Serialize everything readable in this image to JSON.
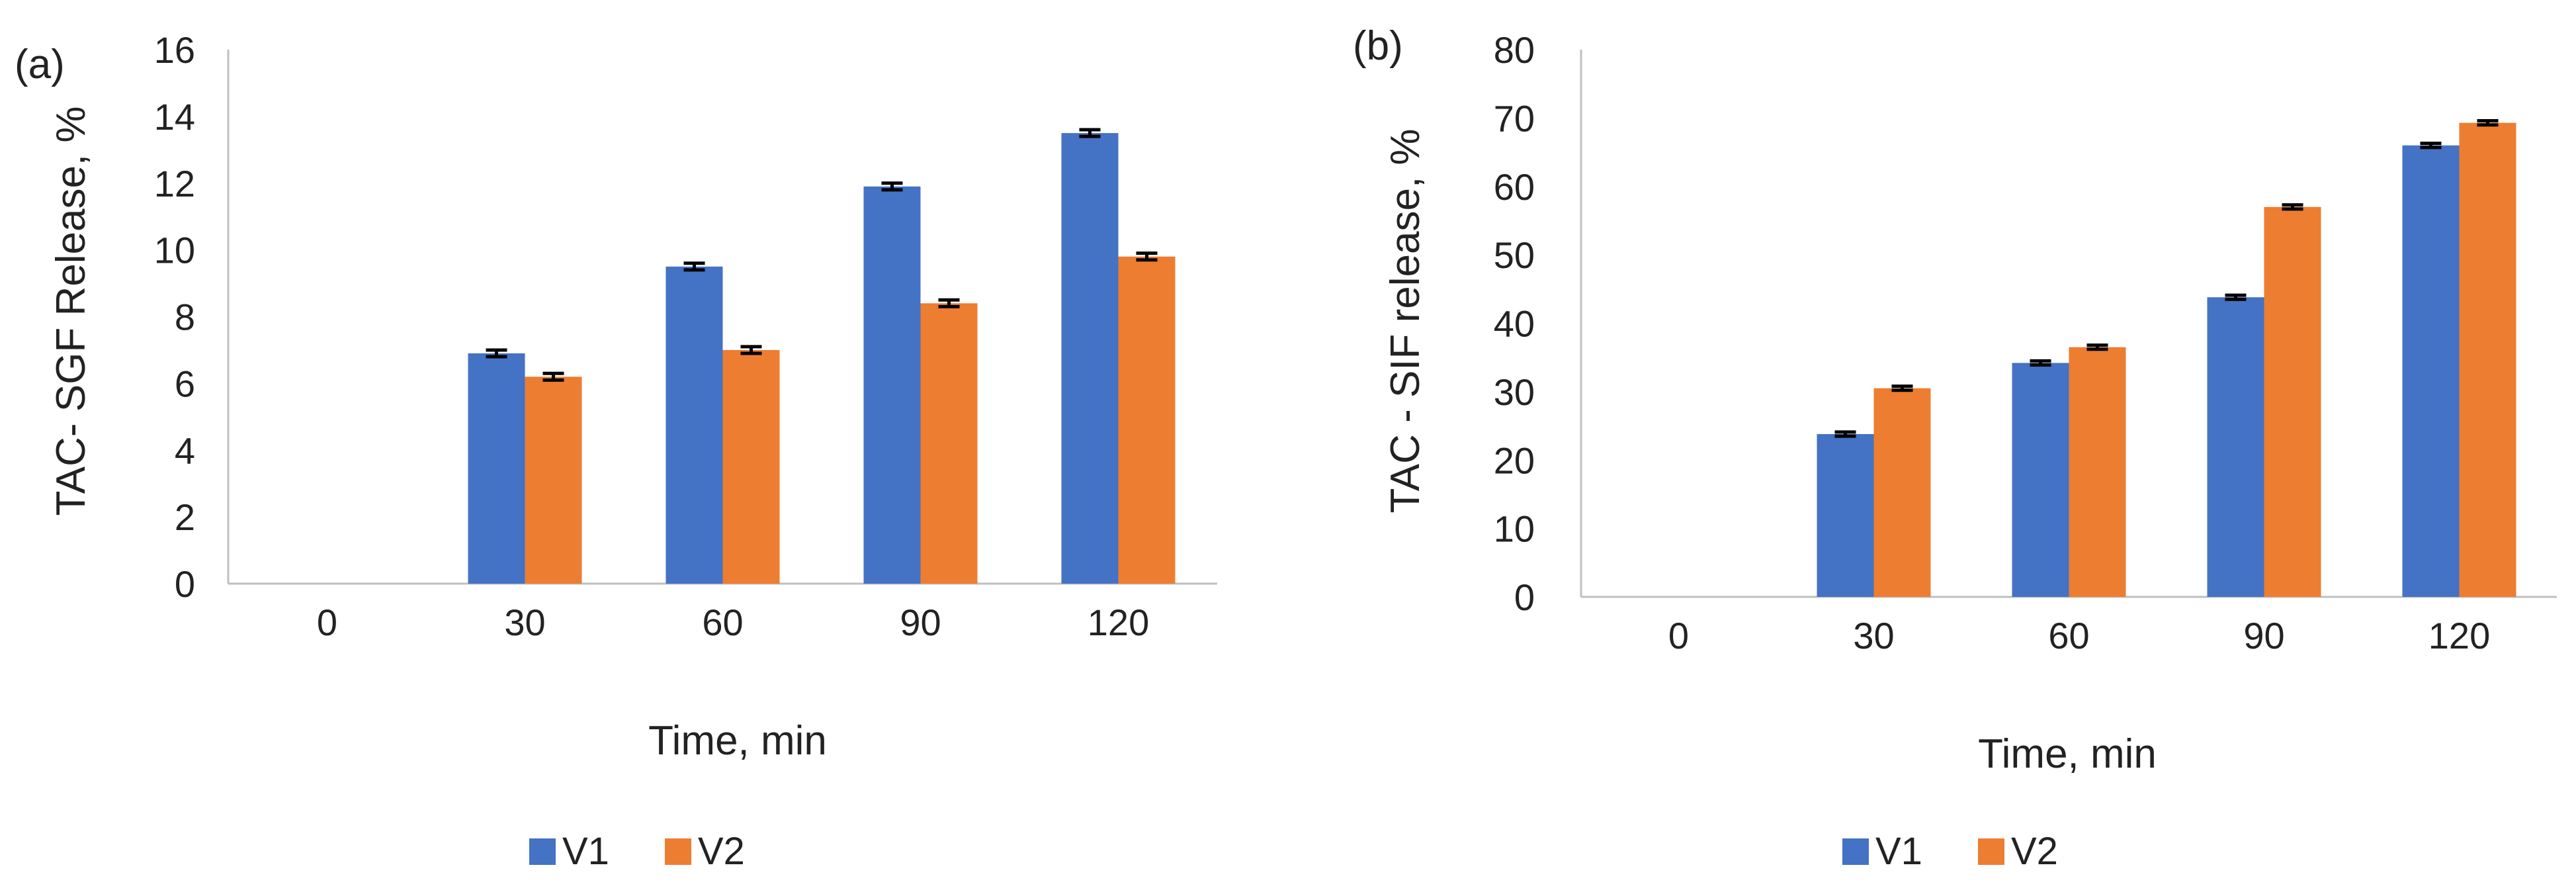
{
  "colors": {
    "V1": "#4472C4",
    "V2": "#ED7D31"
  },
  "chart_data": [
    {
      "panel_label": "(a)",
      "type": "bar",
      "categories": [
        "0",
        "30",
        "60",
        "90",
        "120"
      ],
      "series": [
        {
          "name": "V1",
          "values": [
            0,
            6.9,
            9.5,
            11.9,
            13.5
          ],
          "error": [
            0,
            0.1,
            0.1,
            0.1,
            0.1
          ]
        },
        {
          "name": "V2",
          "values": [
            0,
            6.2,
            7.0,
            8.4,
            9.8
          ],
          "error": [
            0,
            0.1,
            0.1,
            0.1,
            0.1
          ]
        }
      ],
      "xlabel": "Time, min",
      "ylabel": "TAC- SGF Release, %",
      "ylim": [
        0,
        16
      ],
      "yticks": [
        0,
        2,
        4,
        6,
        8,
        10,
        12,
        14,
        16
      ],
      "legend": [
        "V1",
        "V2"
      ],
      "legend_position": "bottom"
    },
    {
      "panel_label": "(b)",
      "type": "bar",
      "categories": [
        "0",
        "30",
        "60",
        "90",
        "120"
      ],
      "series": [
        {
          "name": "V1",
          "values": [
            0,
            23.8,
            34.2,
            43.8,
            66.0
          ],
          "error": [
            0,
            0.3,
            0.3,
            0.3,
            0.3
          ]
        },
        {
          "name": "V2",
          "values": [
            0,
            30.5,
            36.5,
            57.0,
            69.3
          ],
          "error": [
            0,
            0.3,
            0.3,
            0.3,
            0.3
          ]
        }
      ],
      "xlabel": "Time, min",
      "ylabel": "TAC - SIF release, %",
      "ylim": [
        0,
        80
      ],
      "yticks": [
        0,
        10,
        20,
        30,
        40,
        50,
        60,
        70,
        80
      ],
      "legend": [
        "V1",
        "V2"
      ],
      "legend_position": "bottom"
    }
  ]
}
